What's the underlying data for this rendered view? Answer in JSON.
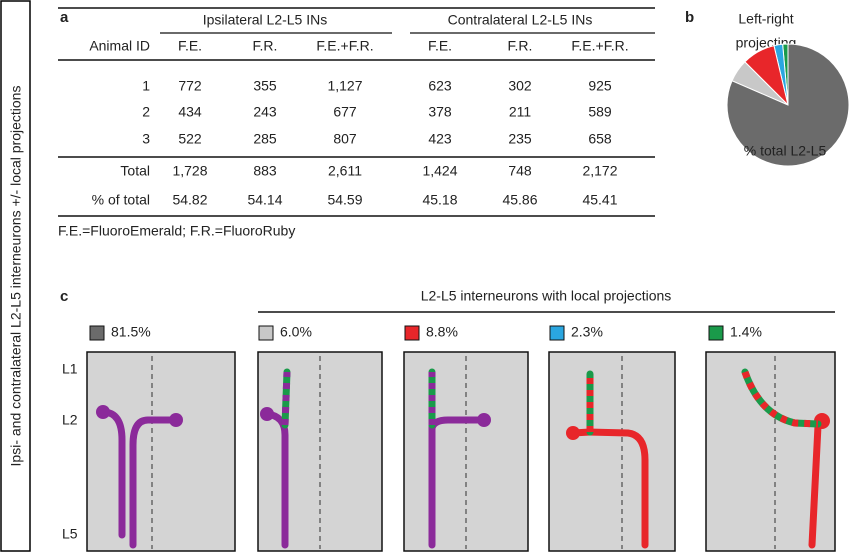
{
  "side_label": "Ipsi- and contralateral L2-L5 interneurons +/- local projections",
  "panel_a": {
    "letter": "a",
    "group_headers": [
      "Ipsilateral L2-L5 INs",
      "Contralateral L2-L5 INs"
    ],
    "columns": [
      "Animal ID",
      "F.E.",
      "F.R.",
      "F.E.+F.R.",
      "F.E.",
      "F.R.",
      "F.E.+F.R."
    ],
    "rows": [
      [
        "1",
        "772",
        "355",
        "1,127",
        "623",
        "302",
        "925"
      ],
      [
        "2",
        "434",
        "243",
        "677",
        "378",
        "211",
        "589"
      ],
      [
        "3",
        "522",
        "285",
        "807",
        "423",
        "235",
        "658"
      ],
      [
        "Total",
        "1,728",
        "883",
        "2,611",
        "1,424",
        "748",
        "2,172"
      ],
      [
        "% of total",
        "54.82",
        "54.14",
        "54.59",
        "45.18",
        "45.86",
        "45.41"
      ]
    ],
    "footnote": "F.E.=FluoroEmerald; F.R.=FluoroRuby"
  },
  "panel_b": {
    "letter": "b",
    "label_lines": [
      "Left-right",
      "projecting"
    ],
    "pie_label": "% total L2-L5"
  },
  "panel_c": {
    "letter": "c",
    "header": "L2-L5 interneurons with local projections",
    "layer_labels": [
      "L1",
      "L2",
      "L5"
    ],
    "items": [
      {
        "value": 81.5,
        "label": "81.5%",
        "color": "#6b6b6b"
      },
      {
        "value": 6.0,
        "label": "6.0%",
        "color": "#c8c8c8"
      },
      {
        "value": 8.8,
        "label": "8.8%",
        "color": "#e8262a"
      },
      {
        "value": 2.3,
        "label": "2.3%",
        "color": "#2aa6e0"
      },
      {
        "value": 1.4,
        "label": "1.4%",
        "color": "#1a9a4a"
      }
    ]
  }
}
